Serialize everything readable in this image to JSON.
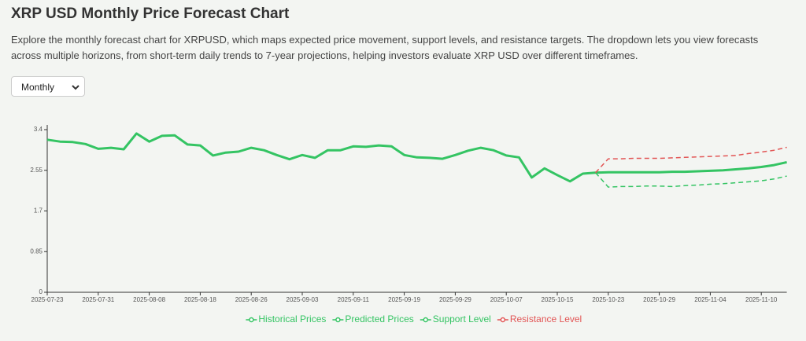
{
  "chart_data": {
    "type": "line",
    "title": "XRP USD Monthly Price Forecast Chart",
    "subtitle": "Explore the monthly forecast chart for XRPUSD, which maps expected price movement, support levels, and resistance targets. The dropdown lets you view forecasts across multiple horizons, from short-term daily trends to 7-year projections, helping investors evaluate XRP USD over different timeframes.",
    "dropdown": "Monthly",
    "categories": [
      "2025-07-23",
      null,
      null,
      null,
      "2025-07-31",
      null,
      null,
      null,
      "2025-08-08",
      null,
      null,
      null,
      "2025-08-18",
      null,
      null,
      null,
      "2025-08-26",
      null,
      null,
      null,
      "2025-09-03",
      null,
      null,
      null,
      "2025-09-11",
      null,
      null,
      null,
      "2025-09-19",
      null,
      null,
      null,
      "2025-09-29",
      null,
      null,
      null,
      "2025-10-07",
      null,
      null,
      null,
      "2025-10-15",
      null,
      null,
      null,
      "2025-10-23",
      null,
      null,
      null,
      "2025-10-29",
      null,
      null,
      null,
      "2025-11-04",
      null,
      null,
      null,
      "2025-11-10",
      null,
      null
    ],
    "ylim": [
      0,
      3.4
    ],
    "yticks": [
      0,
      0.85,
      1.7,
      2.55,
      3.4
    ],
    "grid": false,
    "legend": "bottom",
    "series": [
      {
        "name": "Historical Prices",
        "color": "#34c463",
        "style": "solid",
        "values": [
          3.19,
          3.15,
          3.14,
          3.1,
          3.0,
          3.02,
          2.99,
          3.32,
          3.15,
          3.27,
          3.28,
          3.09,
          3.07,
          2.86,
          2.92,
          2.94,
          3.02,
          2.97,
          2.87,
          2.78,
          2.87,
          2.81,
          2.97,
          2.97,
          3.05,
          3.04,
          3.07,
          3.05,
          2.87,
          2.82,
          2.81,
          2.79,
          2.87,
          2.96,
          3.02,
          2.97,
          2.86,
          2.82,
          2.4,
          2.59,
          2.45,
          2.32,
          2.48,
          2.5,
          null,
          null,
          null,
          null,
          null,
          null,
          null,
          null,
          null,
          null,
          null,
          null,
          null,
          null,
          null
        ]
      },
      {
        "name": "Predicted Prices",
        "color": "#34c463",
        "style": "solid",
        "values": [
          null,
          null,
          null,
          null,
          null,
          null,
          null,
          null,
          null,
          null,
          null,
          null,
          null,
          null,
          null,
          null,
          null,
          null,
          null,
          null,
          null,
          null,
          null,
          null,
          null,
          null,
          null,
          null,
          null,
          null,
          null,
          null,
          null,
          null,
          null,
          null,
          null,
          null,
          null,
          null,
          null,
          null,
          null,
          2.5,
          2.51,
          2.51,
          2.51,
          2.51,
          2.51,
          2.52,
          2.52,
          2.53,
          2.54,
          2.55,
          2.57,
          2.59,
          2.62,
          2.66,
          2.72
        ]
      },
      {
        "name": "Support Level",
        "color": "#34c463",
        "style": "dashed",
        "values": [
          null,
          null,
          null,
          null,
          null,
          null,
          null,
          null,
          null,
          null,
          null,
          null,
          null,
          null,
          null,
          null,
          null,
          null,
          null,
          null,
          null,
          null,
          null,
          null,
          null,
          null,
          null,
          null,
          null,
          null,
          null,
          null,
          null,
          null,
          null,
          null,
          null,
          null,
          null,
          null,
          null,
          null,
          null,
          2.5,
          2.2,
          2.21,
          2.21,
          2.22,
          2.22,
          2.21,
          2.23,
          2.24,
          2.26,
          2.27,
          2.29,
          2.31,
          2.33,
          2.37,
          2.43
        ]
      },
      {
        "name": "Resistance Level",
        "color": "#e25555",
        "style": "dashed",
        "values": [
          null,
          null,
          null,
          null,
          null,
          null,
          null,
          null,
          null,
          null,
          null,
          null,
          null,
          null,
          null,
          null,
          null,
          null,
          null,
          null,
          null,
          null,
          null,
          null,
          null,
          null,
          null,
          null,
          null,
          null,
          null,
          null,
          null,
          null,
          null,
          null,
          null,
          null,
          null,
          null,
          null,
          null,
          null,
          2.5,
          2.79,
          2.79,
          2.8,
          2.8,
          2.8,
          2.81,
          2.82,
          2.83,
          2.84,
          2.85,
          2.86,
          2.9,
          2.93,
          2.97,
          3.03
        ]
      }
    ]
  }
}
